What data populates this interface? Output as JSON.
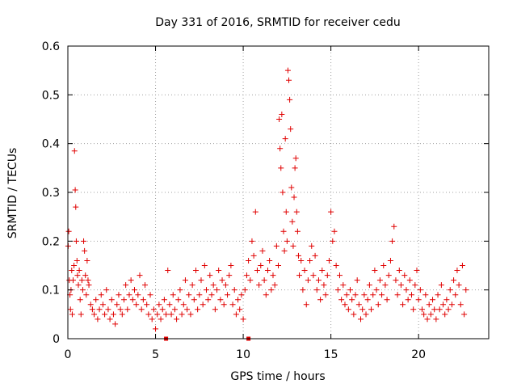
{
  "chart_data": {
    "type": "scatter",
    "title": "Day 331 of 2016, SRMTID for receiver cedu",
    "xlabel": "GPS time / hours",
    "ylabel": "SRMTID / TECUs",
    "xlim": [
      0,
      24
    ],
    "ylim": [
      0,
      0.6
    ],
    "xticks": [
      0,
      5,
      10,
      15,
      20
    ],
    "xtick_labels": [
      "0",
      "5",
      "10",
      "15",
      "20"
    ],
    "yticks": [
      0,
      0.1,
      0.2,
      0.3,
      0.4,
      0.5,
      0.6
    ],
    "ytick_labels": [
      "0",
      "0.1",
      "0.2",
      "0.3",
      "0.4",
      "0.5",
      "0.6"
    ],
    "grid": true,
    "marker": "+",
    "color": "#e00000",
    "series": [
      {
        "name": "SRMTID",
        "points": [
          [
            0.02,
            0.19
          ],
          [
            0.05,
            0.22
          ],
          [
            0.08,
            0.12
          ],
          [
            0.12,
            0.09
          ],
          [
            0.15,
            0.06
          ],
          [
            0.18,
            0.1
          ],
          [
            0.22,
            0.14
          ],
          [
            0.25,
            0.05
          ],
          [
            0.3,
            0.12
          ],
          [
            0.35,
            0.15
          ],
          [
            0.38,
            0.385
          ],
          [
            0.42,
            0.305
          ],
          [
            0.45,
            0.27
          ],
          [
            0.48,
            0.2
          ],
          [
            0.52,
            0.16
          ],
          [
            0.55,
            0.13
          ],
          [
            0.6,
            0.11
          ],
          [
            0.65,
            0.14
          ],
          [
            0.7,
            0.08
          ],
          [
            0.75,
            0.05
          ],
          [
            0.8,
            0.12
          ],
          [
            0.85,
            0.1
          ],
          [
            0.9,
            0.2
          ],
          [
            0.95,
            0.18
          ],
          [
            1.0,
            0.13
          ],
          [
            1.05,
            0.09
          ],
          [
            1.1,
            0.16
          ],
          [
            1.15,
            0.12
          ],
          [
            1.2,
            0.11
          ],
          [
            1.3,
            0.07
          ],
          [
            1.4,
            0.06
          ],
          [
            1.5,
            0.05
          ],
          [
            1.6,
            0.08
          ],
          [
            1.7,
            0.04
          ],
          [
            1.8,
            0.06
          ],
          [
            1.9,
            0.09
          ],
          [
            2.0,
            0.07
          ],
          [
            2.1,
            0.05
          ],
          [
            2.2,
            0.1
          ],
          [
            2.3,
            0.06
          ],
          [
            2.4,
            0.04
          ],
          [
            2.5,
            0.08
          ],
          [
            2.6,
            0.05
          ],
          [
            2.7,
            0.03
          ],
          [
            2.8,
            0.07
          ],
          [
            2.9,
            0.09
          ],
          [
            3.0,
            0.06
          ],
          [
            3.1,
            0.05
          ],
          [
            3.2,
            0.08
          ],
          [
            3.3,
            0.11
          ],
          [
            3.4,
            0.06
          ],
          [
            3.5,
            0.09
          ],
          [
            3.6,
            0.12
          ],
          [
            3.7,
            0.08
          ],
          [
            3.8,
            0.1
          ],
          [
            3.9,
            0.07
          ],
          [
            4.0,
            0.09
          ],
          [
            4.1,
            0.13
          ],
          [
            4.2,
            0.06
          ],
          [
            4.3,
            0.08
          ],
          [
            4.4,
            0.11
          ],
          [
            4.5,
            0.07
          ],
          [
            4.6,
            0.05
          ],
          [
            4.7,
            0.09
          ],
          [
            4.8,
            0.04
          ],
          [
            4.9,
            0.06
          ],
          [
            5.0,
            0.02
          ],
          [
            5.1,
            0.05
          ],
          [
            5.2,
            0.07
          ],
          [
            5.3,
            0.04
          ],
          [
            5.4,
            0.06
          ],
          [
            5.5,
            0.08
          ],
          [
            5.6,
            0.05
          ],
          [
            5.7,
            0.14
          ],
          [
            5.8,
            0.07
          ],
          [
            5.9,
            0.05
          ],
          [
            6.0,
            0.09
          ],
          [
            6.1,
            0.06
          ],
          [
            6.2,
            0.04
          ],
          [
            6.3,
            0.08
          ],
          [
            6.4,
            0.1
          ],
          [
            6.5,
            0.05
          ],
          [
            6.6,
            0.07
          ],
          [
            6.7,
            0.12
          ],
          [
            6.8,
            0.06
          ],
          [
            6.9,
            0.09
          ],
          [
            7.0,
            0.05
          ],
          [
            7.1,
            0.11
          ],
          [
            7.2,
            0.08
          ],
          [
            7.3,
            0.14
          ],
          [
            7.4,
            0.06
          ],
          [
            7.5,
            0.09
          ],
          [
            7.6,
            0.12
          ],
          [
            7.7,
            0.07
          ],
          [
            7.8,
            0.15
          ],
          [
            7.9,
            0.1
          ],
          [
            8.0,
            0.08
          ],
          [
            8.1,
            0.13
          ],
          [
            8.2,
            0.09
          ],
          [
            8.3,
            0.11
          ],
          [
            8.4,
            0.06
          ],
          [
            8.5,
            0.1
          ],
          [
            8.6,
            0.14
          ],
          [
            8.7,
            0.08
          ],
          [
            8.8,
            0.12
          ],
          [
            8.9,
            0.07
          ],
          [
            9.0,
            0.11
          ],
          [
            9.1,
            0.09
          ],
          [
            9.2,
            0.13
          ],
          [
            9.3,
            0.15
          ],
          [
            9.4,
            0.07
          ],
          [
            9.5,
            0.1
          ],
          [
            9.6,
            0.05
          ],
          [
            9.7,
            0.08
          ],
          [
            9.8,
            0.06
          ],
          [
            9.9,
            0.09
          ],
          [
            10.0,
            0.04
          ],
          [
            10.1,
            0.1
          ],
          [
            10.2,
            0.13
          ],
          [
            10.3,
            0.16
          ],
          [
            10.4,
            0.12
          ],
          [
            10.5,
            0.2
          ],
          [
            10.6,
            0.17
          ],
          [
            10.7,
            0.26
          ],
          [
            10.8,
            0.14
          ],
          [
            10.9,
            0.11
          ],
          [
            11.0,
            0.15
          ],
          [
            11.1,
            0.18
          ],
          [
            11.2,
            0.12
          ],
          [
            11.3,
            0.09
          ],
          [
            11.4,
            0.14
          ],
          [
            11.5,
            0.16
          ],
          [
            11.6,
            0.1
          ],
          [
            11.7,
            0.13
          ],
          [
            11.8,
            0.11
          ],
          [
            11.9,
            0.19
          ],
          [
            12.0,
            0.15
          ],
          [
            12.05,
            0.45
          ],
          [
            12.1,
            0.39
          ],
          [
            12.15,
            0.35
          ],
          [
            12.2,
            0.46
          ],
          [
            12.25,
            0.3
          ],
          [
            12.3,
            0.22
          ],
          [
            12.35,
            0.18
          ],
          [
            12.4,
            0.41
          ],
          [
            12.45,
            0.26
          ],
          [
            12.5,
            0.2
          ],
          [
            12.55,
            0.55
          ],
          [
            12.6,
            0.53
          ],
          [
            12.65,
            0.49
          ],
          [
            12.7,
            0.43
          ],
          [
            12.75,
            0.31
          ],
          [
            12.8,
            0.24
          ],
          [
            12.85,
            0.19
          ],
          [
            12.9,
            0.29
          ],
          [
            12.95,
            0.35
          ],
          [
            13.0,
            0.37
          ],
          [
            13.05,
            0.26
          ],
          [
            13.1,
            0.22
          ],
          [
            13.15,
            0.17
          ],
          [
            13.2,
            0.13
          ],
          [
            13.3,
            0.16
          ],
          [
            13.4,
            0.1
          ],
          [
            13.5,
            0.14
          ],
          [
            13.6,
            0.07
          ],
          [
            13.7,
            0.12
          ],
          [
            13.8,
            0.16
          ],
          [
            13.9,
            0.19
          ],
          [
            14.0,
            0.13
          ],
          [
            14.1,
            0.17
          ],
          [
            14.2,
            0.1
          ],
          [
            14.3,
            0.12
          ],
          [
            14.4,
            0.08
          ],
          [
            14.5,
            0.14
          ],
          [
            14.6,
            0.11
          ],
          [
            14.7,
            0.09
          ],
          [
            14.8,
            0.13
          ],
          [
            14.9,
            0.16
          ],
          [
            15.0,
            0.26
          ],
          [
            15.1,
            0.2
          ],
          [
            15.2,
            0.22
          ],
          [
            15.3,
            0.15
          ],
          [
            15.4,
            0.1
          ],
          [
            15.5,
            0.13
          ],
          [
            15.6,
            0.08
          ],
          [
            15.7,
            0.11
          ],
          [
            15.8,
            0.07
          ],
          [
            15.9,
            0.09
          ],
          [
            16.0,
            0.06
          ],
          [
            16.1,
            0.1
          ],
          [
            16.2,
            0.08
          ],
          [
            16.3,
            0.05
          ],
          [
            16.4,
            0.09
          ],
          [
            16.5,
            0.12
          ],
          [
            16.6,
            0.07
          ],
          [
            16.7,
            0.04
          ],
          [
            16.8,
            0.06
          ],
          [
            16.9,
            0.09
          ],
          [
            17.0,
            0.05
          ],
          [
            17.1,
            0.08
          ],
          [
            17.2,
            0.11
          ],
          [
            17.3,
            0.06
          ],
          [
            17.4,
            0.09
          ],
          [
            17.5,
            0.14
          ],
          [
            17.6,
            0.1
          ],
          [
            17.7,
            0.07
          ],
          [
            17.8,
            0.12
          ],
          [
            17.9,
            0.09
          ],
          [
            18.0,
            0.15
          ],
          [
            18.1,
            0.11
          ],
          [
            18.2,
            0.08
          ],
          [
            18.3,
            0.13
          ],
          [
            18.4,
            0.16
          ],
          [
            18.5,
            0.2
          ],
          [
            18.6,
            0.23
          ],
          [
            18.7,
            0.12
          ],
          [
            18.8,
            0.09
          ],
          [
            18.9,
            0.14
          ],
          [
            19.0,
            0.11
          ],
          [
            19.1,
            0.07
          ],
          [
            19.2,
            0.13
          ],
          [
            19.3,
            0.1
          ],
          [
            19.4,
            0.08
          ],
          [
            19.5,
            0.12
          ],
          [
            19.6,
            0.09
          ],
          [
            19.7,
            0.06
          ],
          [
            19.8,
            0.11
          ],
          [
            19.9,
            0.14
          ],
          [
            20.0,
            0.08
          ],
          [
            20.1,
            0.1
          ],
          [
            20.2,
            0.06
          ],
          [
            20.3,
            0.05
          ],
          [
            20.4,
            0.09
          ],
          [
            20.5,
            0.04
          ],
          [
            20.6,
            0.07
          ],
          [
            20.7,
            0.05
          ],
          [
            20.8,
            0.08
          ],
          [
            20.9,
            0.06
          ],
          [
            21.0,
            0.04
          ],
          [
            21.1,
            0.09
          ],
          [
            21.2,
            0.06
          ],
          [
            21.3,
            0.11
          ],
          [
            21.4,
            0.07
          ],
          [
            21.5,
            0.05
          ],
          [
            21.6,
            0.08
          ],
          [
            21.7,
            0.06
          ],
          [
            21.8,
            0.1
          ],
          [
            21.9,
            0.07
          ],
          [
            22.0,
            0.12
          ],
          [
            22.1,
            0.09
          ],
          [
            22.2,
            0.14
          ],
          [
            22.3,
            0.11
          ],
          [
            22.4,
            0.07
          ],
          [
            22.5,
            0.15
          ],
          [
            22.6,
            0.05
          ],
          [
            22.7,
            0.1
          ]
        ]
      }
    ],
    "axis_markers": [
      {
        "x": 5.6,
        "y": 0
      },
      {
        "x": 10.3,
        "y": 0
      }
    ]
  }
}
